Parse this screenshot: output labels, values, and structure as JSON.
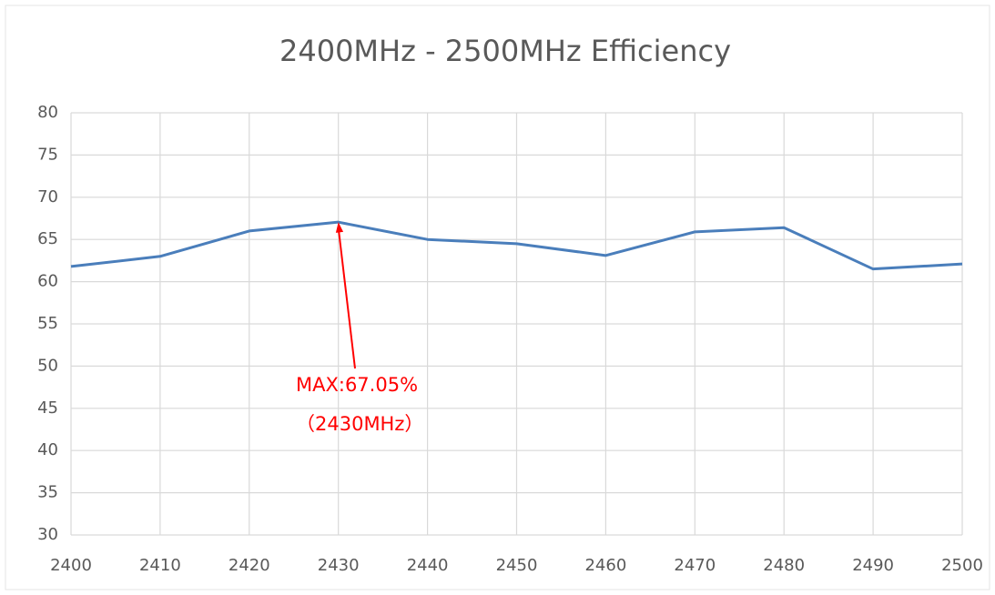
{
  "chart_data": {
    "type": "line",
    "title": "2400MHz - 2500MHz Efficiency",
    "x": [
      2400,
      2410,
      2420,
      2430,
      2440,
      2450,
      2460,
      2470,
      2480,
      2490,
      2500
    ],
    "series": [
      {
        "color": "#4a7ebb",
        "values": [
          61.8,
          63,
          66,
          67.05,
          65,
          64.5,
          63.1,
          65.9,
          66.4,
          61.5,
          62.1
        ]
      }
    ],
    "xlim": [
      2400,
      2500
    ],
    "xticks": [
      2400,
      2410,
      2420,
      2430,
      2440,
      2450,
      2460,
      2470,
      2480,
      2490,
      2500
    ],
    "ylim": [
      30,
      80
    ],
    "yticks": [
      30,
      35,
      40,
      45,
      50,
      55,
      60,
      65,
      70,
      75,
      80
    ],
    "grid": true,
    "annotations": [
      "MAX:67.05%",
      "（2430MHz）"
    ]
  }
}
